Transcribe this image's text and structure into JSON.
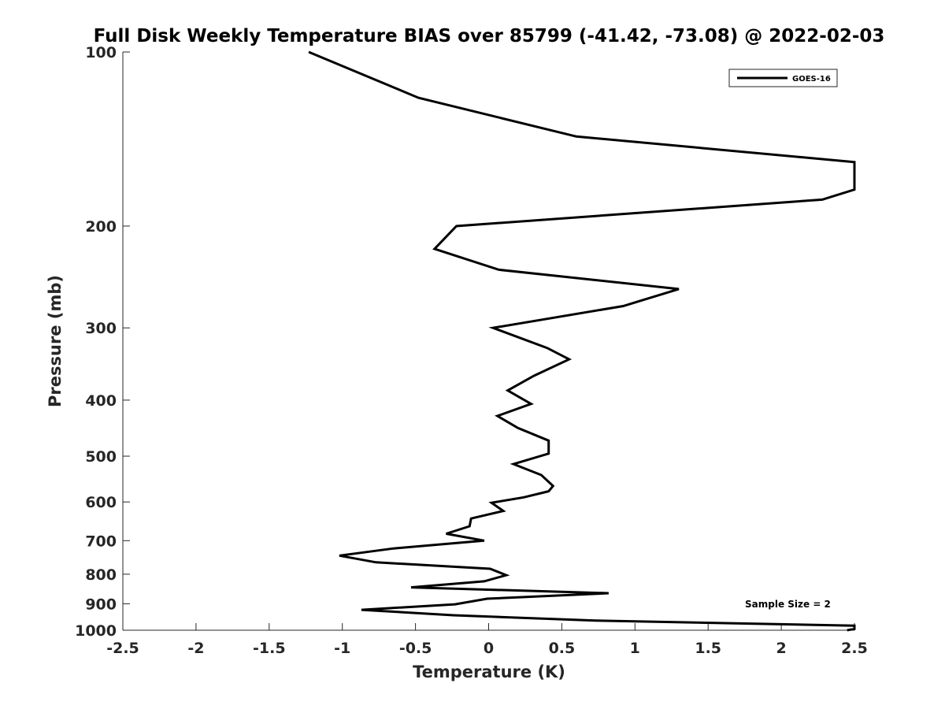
{
  "chart_data": {
    "type": "line",
    "title": "Full Disk Weekly Temperature BIAS over 85799 (-41.42, -73.08) @ 2022-02-03",
    "xlabel": "Temperature (K)",
    "ylabel": "Pressure (mb)",
    "xlim": [
      -2.5,
      2.5
    ],
    "ylim": [
      1000,
      100
    ],
    "yscale": "log",
    "y_reversed": true,
    "x_ticks": [
      "-2.5",
      "-2",
      "-1.5",
      "-1",
      "-0.5",
      "0",
      "0.5",
      "1",
      "1.5",
      "2",
      "2.5"
    ],
    "x_tick_values": [
      -2.5,
      -2,
      -1.5,
      -1,
      -0.5,
      0,
      0.5,
      1,
      1.5,
      2,
      2.5
    ],
    "y_ticks": [
      "100",
      "200",
      "300",
      "400",
      "500",
      "600",
      "700",
      "800",
      "900",
      "1000"
    ],
    "y_tick_values": [
      100,
      200,
      300,
      400,
      500,
      600,
      700,
      800,
      900,
      1000
    ],
    "grid": false,
    "legend_position": "top-right",
    "line_color": "#000000",
    "series": [
      {
        "name": "GOES-16",
        "points": [
          [
            -1.23,
            100
          ],
          [
            -0.48,
            120
          ],
          [
            0.6,
            140
          ],
          [
            2.5,
            155
          ],
          [
            2.5,
            173
          ],
          [
            2.28,
            180
          ],
          [
            -0.22,
            200
          ],
          [
            -0.37,
            219
          ],
          [
            0.07,
            238
          ],
          [
            1.3,
            257
          ],
          [
            0.92,
            275
          ],
          [
            0.03,
            300
          ],
          [
            0.4,
            325
          ],
          [
            0.55,
            340
          ],
          [
            0.31,
            363
          ],
          [
            0.13,
            385
          ],
          [
            0.29,
            406
          ],
          [
            0.06,
            426
          ],
          [
            0.2,
            447
          ],
          [
            0.41,
            470
          ],
          [
            0.41,
            495
          ],
          [
            0.17,
            516
          ],
          [
            0.36,
            539
          ],
          [
            0.44,
            563
          ],
          [
            0.41,
            575
          ],
          [
            0.24,
            589
          ],
          [
            0.02,
            602
          ],
          [
            0.1,
            622
          ],
          [
            -0.12,
            641
          ],
          [
            -0.13,
            661
          ],
          [
            -0.29,
            681
          ],
          [
            -0.03,
            700
          ],
          [
            -0.65,
            722
          ],
          [
            -1.02,
            743
          ],
          [
            -0.77,
            763
          ],
          [
            0.01,
            783
          ],
          [
            0.12,
            803
          ],
          [
            -0.03,
            823
          ],
          [
            -0.53,
            843
          ],
          [
            0.82,
            863
          ],
          [
            -0.01,
            882
          ],
          [
            -0.23,
            902
          ],
          [
            -0.87,
            922
          ],
          [
            -0.24,
            942
          ],
          [
            0.73,
            962
          ],
          [
            2.5,
            982
          ],
          [
            2.5,
            995
          ],
          [
            2.45,
            1000
          ]
        ]
      }
    ],
    "annotation": "Sample Size = 2"
  }
}
